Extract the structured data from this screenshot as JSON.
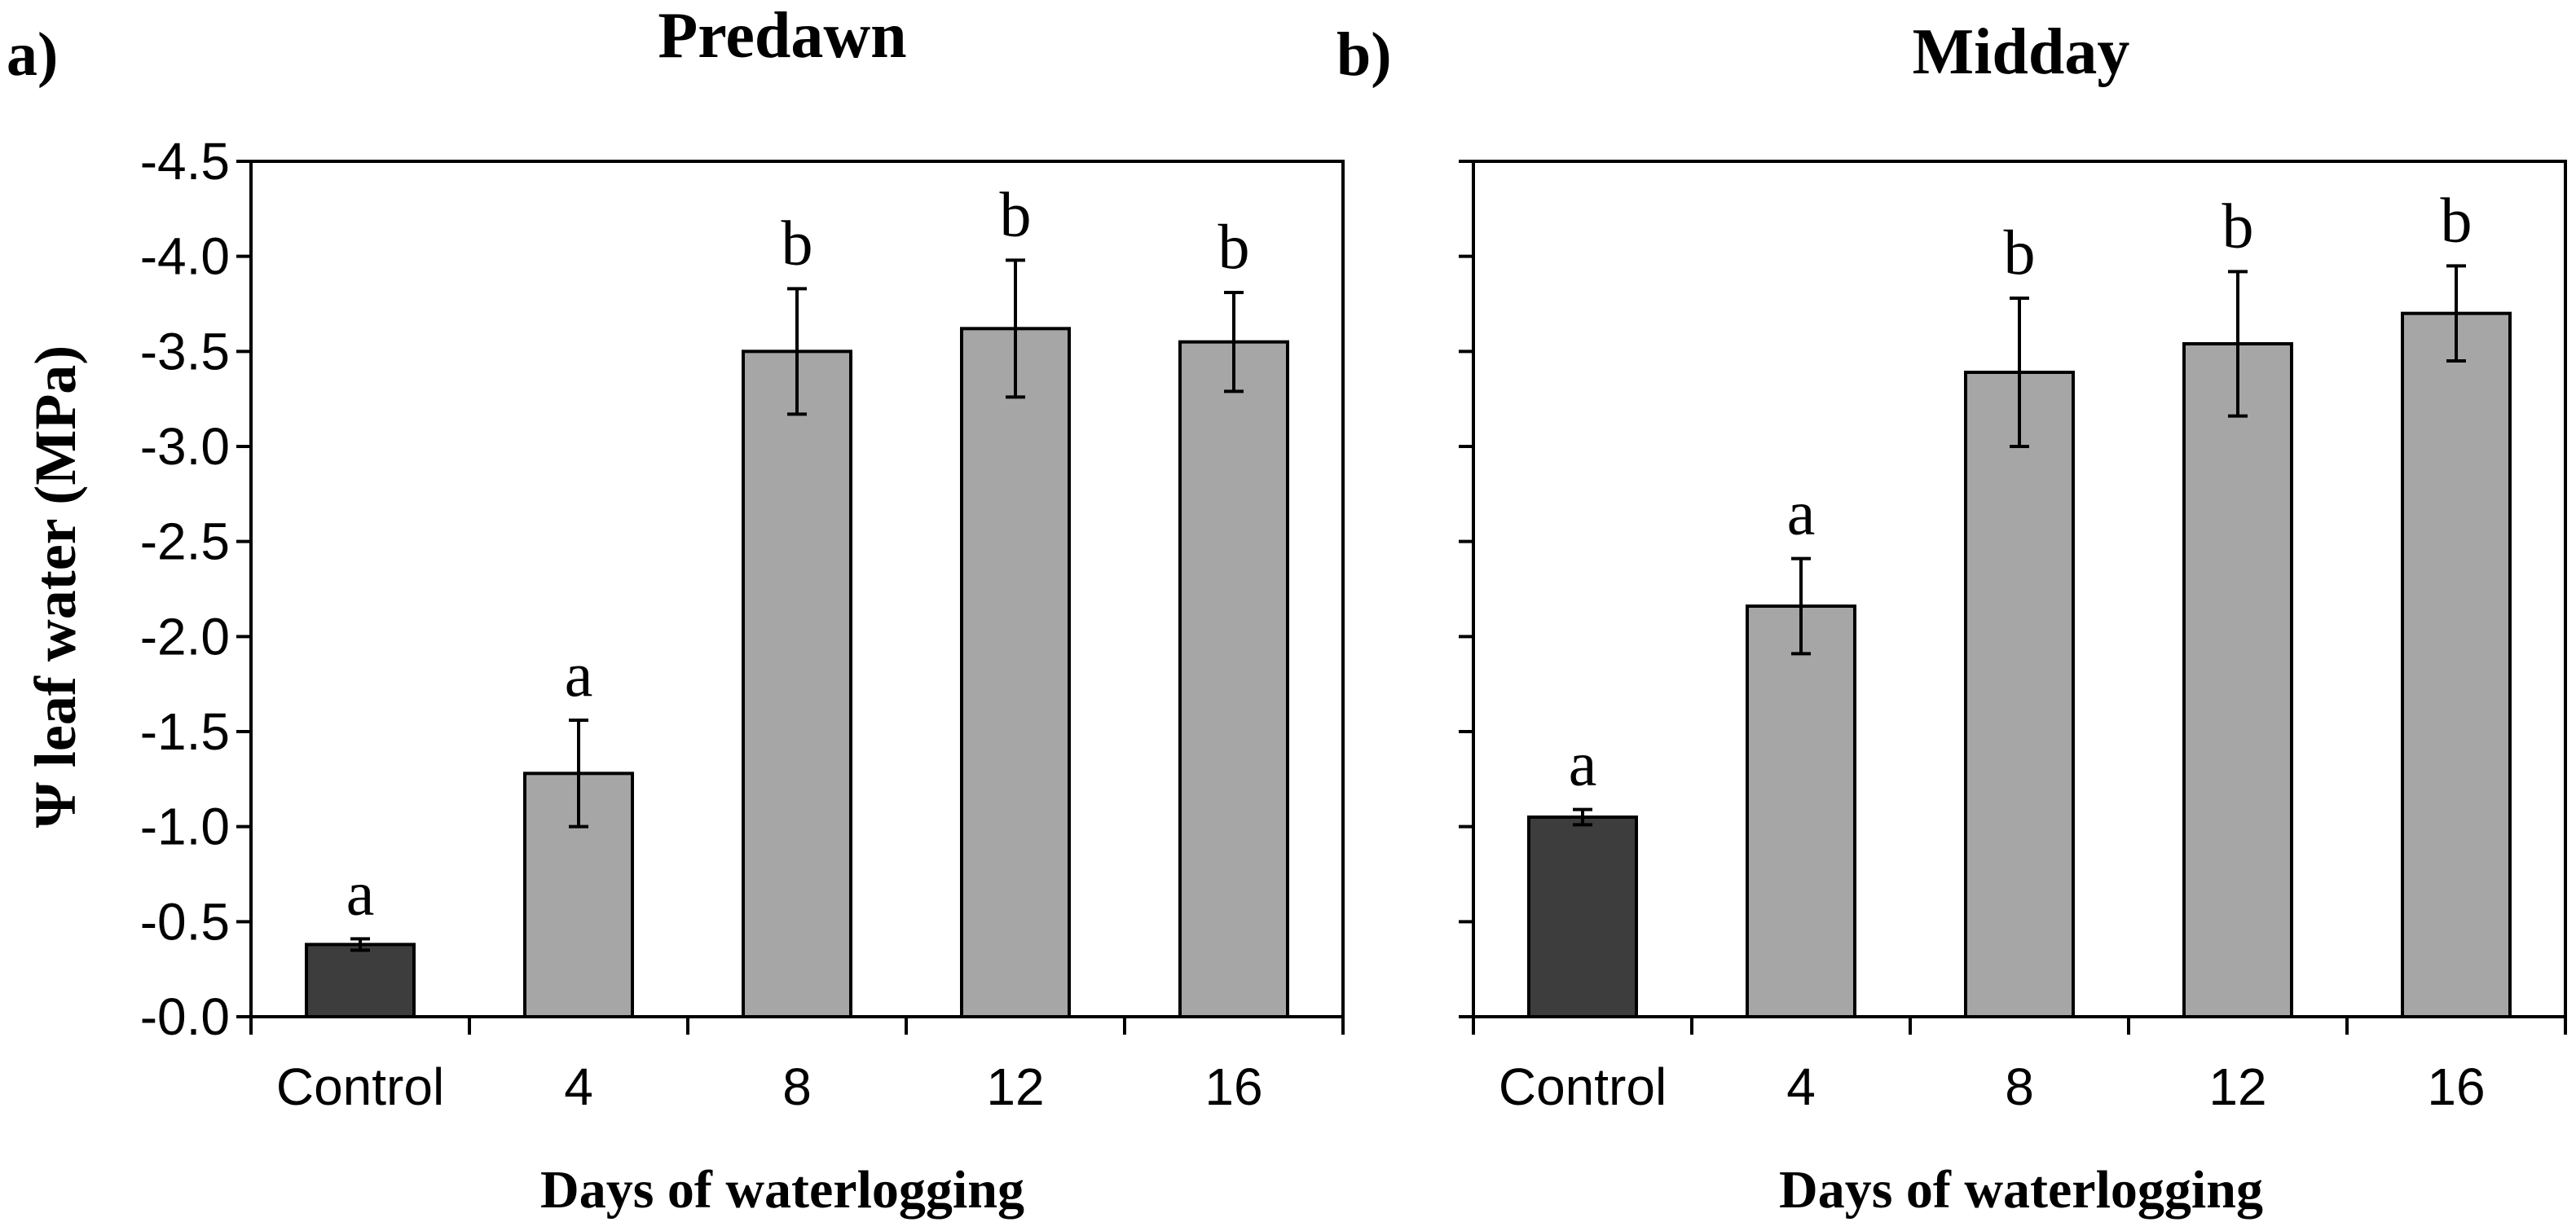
{
  "figure": {
    "y_axis_label": "Ψ leaf water  (MPa)",
    "x_axis_label": "Days of waterlogging"
  },
  "colors": {
    "control_bar": "#3d3d3d",
    "treatment_bar": "#a6a6a6",
    "axis": "#000000"
  },
  "chart_data": [
    {
      "type": "bar",
      "panel_label": "a)",
      "title": "Predawn",
      "xlabel": "Days of waterlogging",
      "ylabel": "Ψ leaf water  (MPa)",
      "categories": [
        "Control",
        "4",
        "8",
        "12",
        "16"
      ],
      "values": [
        -0.38,
        -1.28,
        -3.5,
        -3.62,
        -3.55
      ],
      "errors": [
        0.03,
        0.28,
        0.33,
        0.36,
        0.26
      ],
      "significance": [
        "a",
        "a",
        "b",
        "b",
        "b"
      ],
      "ylim": [
        0,
        -4.5
      ],
      "y_ticks": [
        "-0.0",
        "-0.5",
        "-1.0",
        "-1.5",
        "-2.0",
        "-2.5",
        "-3.0",
        "-3.5",
        "-4.0",
        "-4.5"
      ],
      "show_y_tick_labels": true,
      "grid": false
    },
    {
      "type": "bar",
      "panel_label": "b)",
      "title": "Midday",
      "xlabel": "Days of waterlogging",
      "ylabel": "",
      "categories": [
        "Control",
        "4",
        "8",
        "12",
        "16"
      ],
      "values": [
        -1.05,
        -2.16,
        -3.39,
        -3.54,
        -3.7
      ],
      "errors": [
        0.04,
        0.25,
        0.39,
        0.38,
        0.25
      ],
      "significance": [
        "a",
        "a",
        "b",
        "b",
        "b"
      ],
      "ylim": [
        0,
        -4.5
      ],
      "y_ticks": [
        "-0.0",
        "-0.5",
        "-1.0",
        "-1.5",
        "-2.0",
        "-2.5",
        "-3.0",
        "-3.5",
        "-4.0",
        "-4.5"
      ],
      "show_y_tick_labels": false,
      "grid": false
    }
  ]
}
